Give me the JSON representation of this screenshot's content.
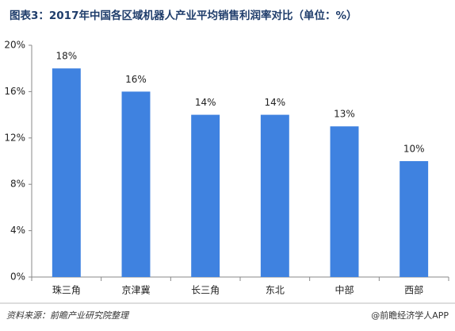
{
  "chart_data": {
    "type": "bar",
    "title": "图表3：2017年中国各区域机器人产业平均销售利润率对比（单位：%）",
    "categories": [
      "珠三角",
      "京津冀",
      "长三角",
      "东北",
      "中部",
      "西部"
    ],
    "values": [
      18,
      16,
      14,
      14,
      13,
      10
    ],
    "value_labels": [
      "18%",
      "16%",
      "14%",
      "14%",
      "13%",
      "10%"
    ],
    "color": "#3f82e0",
    "ylim": [
      0,
      20
    ],
    "yticks": [
      {
        "value": 0,
        "label": "0%"
      },
      {
        "value": 4,
        "label": "4%"
      },
      {
        "value": 8,
        "label": "8%"
      },
      {
        "value": 12,
        "label": "12%"
      },
      {
        "value": 16,
        "label": "16%"
      },
      {
        "value": 20,
        "label": "20%"
      }
    ],
    "grid": false,
    "source": "资料来源：前瞻产业研究院整理",
    "watermark": "@前瞻经济学人APP"
  }
}
